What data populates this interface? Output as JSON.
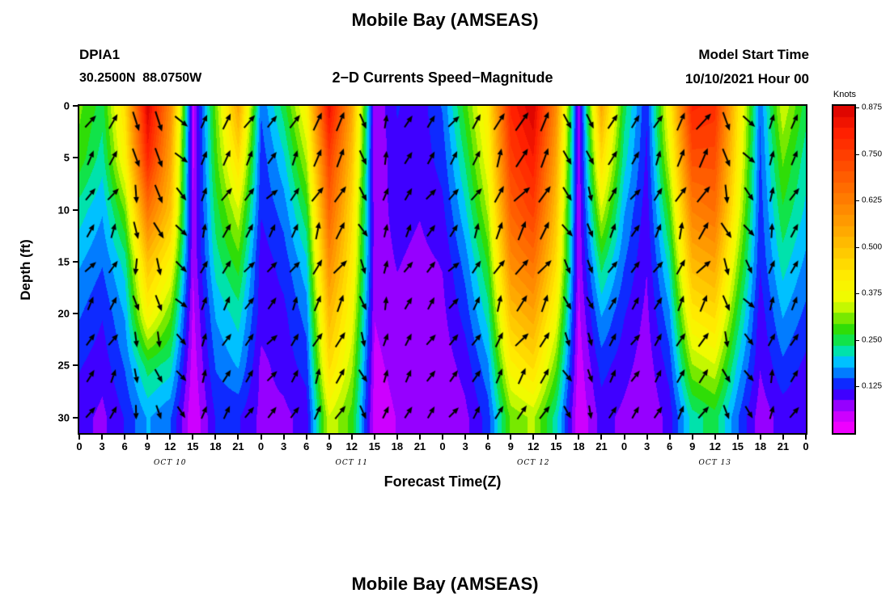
{
  "page": {
    "title_top": "Mobile Bay (AMSEAS)",
    "title_bottom": "Mobile Bay (AMSEAS)"
  },
  "header": {
    "station_id": "DPIA1",
    "station_coords": "30.2500N  88.0750W",
    "plot_subtitle": "2−D Currents Speed−Magnitude",
    "model_start_label": "Model Start Time",
    "model_start_value": "10/10/2021 Hour 00"
  },
  "axes": {
    "ylabel": "Depth (ft)",
    "xlabel": "Forecast Time(Z)",
    "y_tick_labels": [
      "0",
      "5",
      "10",
      "15",
      "20",
      "25",
      "30"
    ],
    "y_tick_values": [
      0,
      5,
      10,
      15,
      20,
      25,
      30
    ],
    "y_range": [
      0,
      31.5
    ],
    "x_tick_labels": [
      "0",
      "3",
      "6",
      "9",
      "12",
      "15",
      "18",
      "21",
      "0",
      "3",
      "6",
      "9",
      "12",
      "15",
      "18",
      "21",
      "0",
      "3",
      "6",
      "9",
      "12",
      "15",
      "18",
      "21",
      "0",
      "3",
      "6",
      "9",
      "12",
      "15",
      "18",
      "21",
      "0"
    ],
    "x_range": [
      0,
      96
    ],
    "date_labels": [
      "OCT 10",
      "OCT 11",
      "OCT 12",
      "OCT 13"
    ],
    "date_center_hours": [
      12,
      36,
      60,
      84
    ]
  },
  "colorbar": {
    "label": "Knots",
    "tick_labels": [
      "0.875",
      "0.750",
      "0.625",
      "0.500",
      "0.375",
      "0.250",
      "0.125"
    ],
    "tick_values": [
      0.875,
      0.75,
      0.625,
      0.5,
      0.375,
      0.25,
      0.125
    ],
    "range": [
      0,
      0.88
    ],
    "stops": [
      [
        0.0,
        255,
        0,
        255
      ],
      [
        0.07,
        185,
        0,
        255
      ],
      [
        0.133,
        20,
        0,
        255
      ],
      [
        0.19,
        0,
        140,
        255
      ],
      [
        0.23,
        0,
        220,
        255
      ],
      [
        0.265,
        0,
        230,
        110
      ],
      [
        0.32,
        50,
        220,
        0
      ],
      [
        0.4,
        235,
        255,
        0
      ],
      [
        0.47,
        255,
        240,
        0
      ],
      [
        0.533,
        255,
        210,
        0
      ],
      [
        0.667,
        255,
        145,
        0
      ],
      [
        0.8,
        255,
        85,
        0
      ],
      [
        0.92,
        255,
        30,
        0
      ],
      [
        1.0,
        215,
        0,
        0
      ]
    ]
  },
  "chart_data": {
    "type": "heatmap",
    "title": "Mobile Bay (AMSEAS)",
    "subtitle": "2−D Currents Speed−Magnitude",
    "station": "DPIA1",
    "units": "Knots",
    "xlabel": "Forecast Time(Z)",
    "ylabel": "Depth (ft)",
    "x_hours": [
      0,
      3,
      6,
      9,
      12,
      15,
      18,
      21,
      24,
      27,
      30,
      33,
      36,
      39,
      42,
      45,
      48,
      51,
      54,
      57,
      60,
      63,
      66,
      69,
      72,
      75,
      78,
      81,
      84,
      87,
      90,
      93,
      96
    ],
    "depths_ft": [
      0,
      5,
      10,
      15,
      20,
      25,
      30
    ],
    "speed_knots_rows_by_depth": [
      [
        0.3,
        0.25,
        0.45,
        0.88,
        0.6,
        0.05,
        0.3,
        0.55,
        0.15,
        0.25,
        0.4,
        0.85,
        0.55,
        0.06,
        0.12,
        0.1,
        0.15,
        0.28,
        0.42,
        0.8,
        0.88,
        0.6,
        0.06,
        0.55,
        0.25,
        0.12,
        0.4,
        0.8,
        0.78,
        0.45,
        0.15,
        0.35,
        0.25
      ],
      [
        0.28,
        0.22,
        0.4,
        0.8,
        0.55,
        0.05,
        0.28,
        0.45,
        0.13,
        0.2,
        0.33,
        0.75,
        0.5,
        0.06,
        0.11,
        0.1,
        0.13,
        0.24,
        0.38,
        0.75,
        0.82,
        0.55,
        0.06,
        0.45,
        0.22,
        0.11,
        0.35,
        0.72,
        0.72,
        0.42,
        0.14,
        0.3,
        0.22
      ],
      [
        0.22,
        0.18,
        0.3,
        0.65,
        0.5,
        0.06,
        0.25,
        0.35,
        0.12,
        0.16,
        0.26,
        0.68,
        0.45,
        0.07,
        0.1,
        0.09,
        0.11,
        0.2,
        0.33,
        0.68,
        0.75,
        0.5,
        0.06,
        0.35,
        0.18,
        0.1,
        0.28,
        0.62,
        0.65,
        0.38,
        0.13,
        0.26,
        0.2
      ],
      [
        0.18,
        0.15,
        0.22,
        0.5,
        0.4,
        0.06,
        0.22,
        0.28,
        0.1,
        0.13,
        0.2,
        0.6,
        0.42,
        0.07,
        0.09,
        0.08,
        0.09,
        0.16,
        0.27,
        0.6,
        0.65,
        0.45,
        0.06,
        0.25,
        0.15,
        0.09,
        0.22,
        0.52,
        0.55,
        0.32,
        0.12,
        0.22,
        0.17
      ],
      [
        0.15,
        0.12,
        0.18,
        0.4,
        0.3,
        0.05,
        0.18,
        0.22,
        0.1,
        0.11,
        0.16,
        0.52,
        0.38,
        0.06,
        0.08,
        0.08,
        0.08,
        0.13,
        0.22,
        0.5,
        0.55,
        0.38,
        0.05,
        0.18,
        0.12,
        0.08,
        0.17,
        0.42,
        0.45,
        0.26,
        0.1,
        0.18,
        0.14
      ],
      [
        0.12,
        0.1,
        0.15,
        0.25,
        0.22,
        0.04,
        0.15,
        0.18,
        0.08,
        0.1,
        0.13,
        0.45,
        0.33,
        0.05,
        0.07,
        0.07,
        0.07,
        0.1,
        0.17,
        0.4,
        0.45,
        0.3,
        0.04,
        0.13,
        0.1,
        0.07,
        0.13,
        0.32,
        0.35,
        0.2,
        0.09,
        0.14,
        0.11
      ],
      [
        0.1,
        0.08,
        0.12,
        0.18,
        0.15,
        0.03,
        0.12,
        0.12,
        0.08,
        0.08,
        0.1,
        0.35,
        0.28,
        0.04,
        0.06,
        0.06,
        0.06,
        0.08,
        0.13,
        0.3,
        0.33,
        0.22,
        0.03,
        0.1,
        0.08,
        0.06,
        0.1,
        0.22,
        0.25,
        0.15,
        0.07,
        0.1,
        0.09
      ]
    ],
    "arrow_angles_deg_by_hour": [
      55,
      60,
      -80,
      -70,
      -45,
      70,
      60,
      55,
      50,
      60,
      65,
      60,
      -65,
      75,
      60,
      55,
      50,
      60,
      65,
      55,
      60,
      -60,
      -70,
      60,
      55,
      60,
      65,
      55,
      -70,
      -50,
      75,
      60,
      70
    ],
    "arrow_row_offsets_deg": [
      0,
      6,
      -6,
      8,
      -8,
      5,
      -5,
      3,
      -3
    ]
  }
}
